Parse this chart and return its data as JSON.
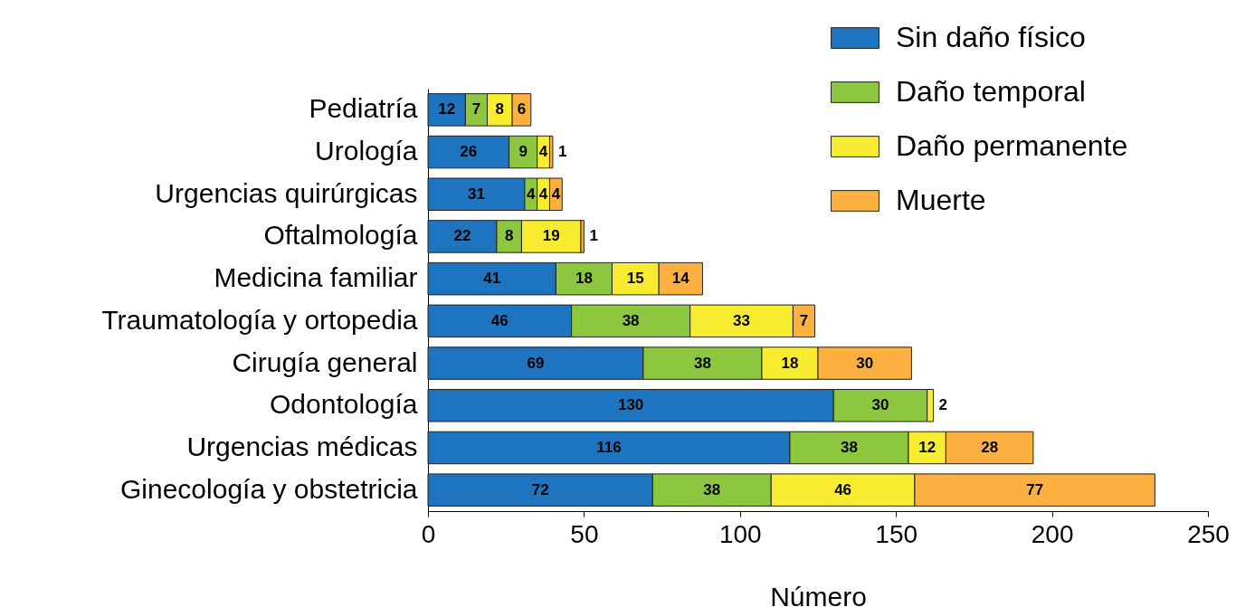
{
  "chart_data": {
    "type": "bar",
    "orientation": "horizontal",
    "stacked": true,
    "xlabel": "Número",
    "categories": [
      "Pediatría",
      "Urología",
      "Urgencias quirúrgicas",
      "Oftalmología",
      "Medicina familiar",
      "Traumatología y ortopedia",
      "Cirugía general",
      "Odontología",
      "Urgencias médicas",
      "Ginecología y obstetricia"
    ],
    "series": [
      {
        "name": "Sin daño físico",
        "color": "#1f74bf",
        "values": [
          12,
          26,
          31,
          22,
          41,
          46,
          69,
          130,
          116,
          72
        ]
      },
      {
        "name": "Daño temporal",
        "color": "#8dc63f",
        "values": [
          7,
          9,
          4,
          8,
          18,
          38,
          38,
          30,
          38,
          38
        ]
      },
      {
        "name": "Daño permanente",
        "color": "#f7ec2f",
        "values": [
          8,
          4,
          4,
          19,
          15,
          33,
          18,
          2,
          12,
          46
        ]
      },
      {
        "name": "Muerte",
        "color": "#fbb040",
        "values": [
          6,
          1,
          4,
          1,
          14,
          7,
          30,
          null,
          28,
          77
        ]
      }
    ],
    "xlim": [
      0,
      250
    ],
    "xticks": [
      0,
      50,
      100,
      150,
      200,
      250
    ],
    "data_labels": true,
    "legend": "top right"
  }
}
